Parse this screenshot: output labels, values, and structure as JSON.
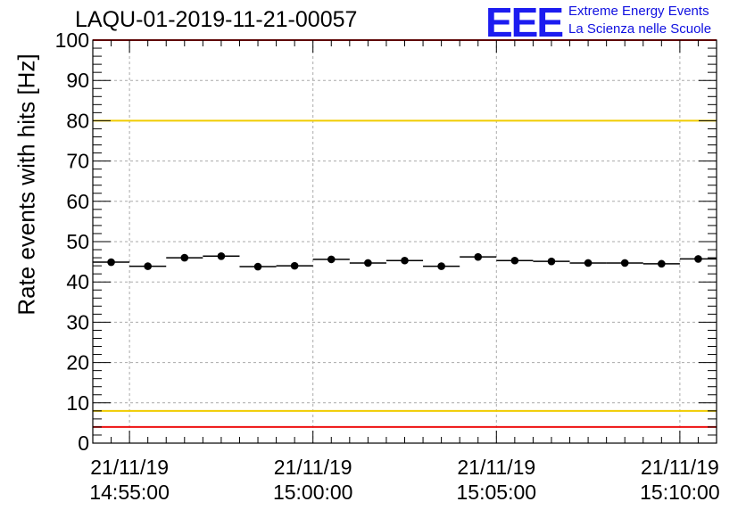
{
  "header": {
    "run_id": "LAQU-01-2019-11-21-00057",
    "logo_text": "EEE",
    "logo_line1": "Extreme Energy Events",
    "logo_line2": "La Scienza nelle Scuole"
  },
  "colors": {
    "points": "#000000",
    "red_limit": "#ee1111",
    "yellow_limit": "#f0cc00",
    "grid": "#aaaaaa",
    "logo": "#1c1cf0"
  },
  "chart_data": {
    "type": "scatter",
    "title": "LAQU-01-2019-11-21-00057",
    "xlabel": "",
    "ylabel": "Rate events with hits [Hz]",
    "xlim_minutes": [
      -1.0,
      16.0
    ],
    "ylim": [
      0,
      100
    ],
    "y_ticks": [
      0,
      10,
      20,
      30,
      40,
      50,
      60,
      70,
      80,
      90,
      100
    ],
    "x_ticks": [
      {
        "minute": 0,
        "date": "21/11/19",
        "time": "14:55:00"
      },
      {
        "minute": 5,
        "date": "21/11/19",
        "time": "15:00:00"
      },
      {
        "minute": 10,
        "date": "21/11/19",
        "time": "15:05:00"
      },
      {
        "minute": 15,
        "date": "21/11/19",
        "time": "15:10:00"
      }
    ],
    "bin_width_minutes": 1.0,
    "series": [
      {
        "name": "Rate",
        "minutes": [
          -0.5,
          0.5,
          1.5,
          2.5,
          3.5,
          4.5,
          5.5,
          6.5,
          7.5,
          8.5,
          9.5,
          10.5,
          11.5,
          12.5,
          13.5,
          14.5,
          15.5
        ],
        "values": [
          44.9,
          43.9,
          46.0,
          46.4,
          43.8,
          44.0,
          45.6,
          44.7,
          45.3,
          43.9,
          46.2,
          45.3,
          45.1,
          44.7,
          44.7,
          44.5,
          45.7
        ]
      }
    ],
    "reference_lines": [
      {
        "y": 100,
        "color": "red"
      },
      {
        "y": 80,
        "color": "yellow"
      },
      {
        "y": 8,
        "color": "yellow"
      },
      {
        "y": 4,
        "color": "red"
      }
    ],
    "grid": true
  }
}
